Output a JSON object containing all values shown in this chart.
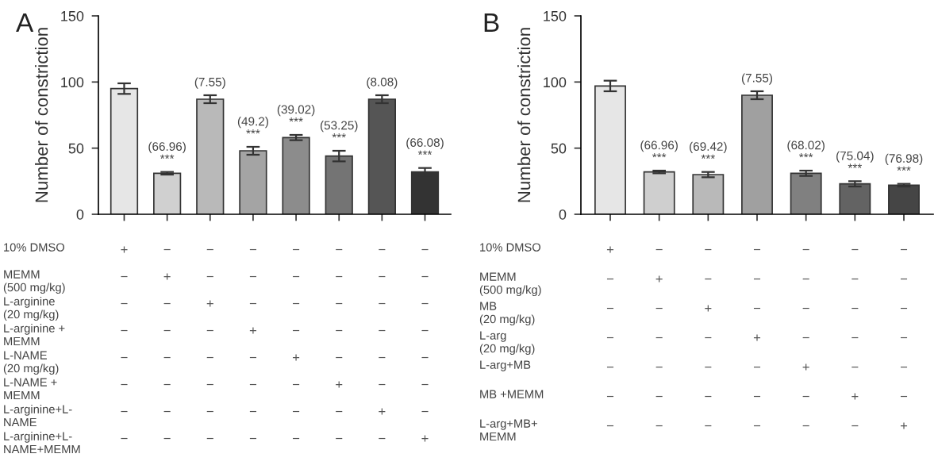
{
  "chart_data": [
    {
      "type": "bar",
      "title": "A",
      "ylabel": "Number of constriction",
      "categories": [
        null,
        null,
        null,
        null,
        null,
        null,
        null,
        null
      ],
      "values": [
        95,
        31,
        87,
        48,
        58,
        44,
        87,
        32
      ],
      "errors": [
        4,
        1,
        3,
        3,
        2,
        4,
        3,
        3
      ],
      "colors": [
        "#e6e6e6",
        "#d0d0d0",
        "#b9b9b9",
        "#a4a4a4",
        "#8c8c8c",
        "#747474",
        "#555555",
        "#333333"
      ],
      "ylim": [
        0,
        150
      ],
      "yticks": [
        0,
        50,
        100,
        150
      ],
      "grid": false,
      "tick_labels": "y",
      "annotations": [
        {
          "text": "(66.96)\n***",
          "y": 32
        },
        {
          "text": "(7.55)",
          "y": 90
        },
        {
          "text": "(49.2)\n***",
          "y": 51
        },
        {
          "text": "(39.02)\n***",
          "y": 60
        },
        {
          "text": "(53.25)\n***",
          "y": 48
        },
        {
          "text": "(8.08)",
          "y": 90
        },
        {
          "text": "(66.08)\n***",
          "y": 35
        },
        "10% DMSO",
        "+ − − − − − − −",
        "MEMM\n(500 mg/kg)",
        "− + − − − − − −",
        "L-arginine\n(20 mg/kg)",
        "− − + − − − − −",
        "L-arginine +\nMEMM",
        "− − − + − − − −",
        "L-NAME\n(20 mg/kg)",
        "− − − − + − − −",
        "L-NAME +\nMEMM",
        "− − − − − + − −",
        "L-arginine+L-\nNAME",
        "− − − − − − + −",
        "L-arginine+L-\nNAME+MEMM",
        "− − − − − − − +"
      ]
    },
    {
      "type": "bar",
      "title": "B",
      "ylabel": "Number of constriction",
      "categories": [
        null,
        null,
        null,
        null,
        null,
        null,
        null
      ],
      "values": [
        97,
        32,
        30,
        90,
        31,
        23,
        22
      ],
      "errors": [
        4,
        1,
        2,
        3,
        2,
        2,
        1
      ],
      "colors": [
        "#e6e6e6",
        "#cfcfcf",
        "#b9b9b9",
        "#a0a0a0",
        "#808080",
        "#636363",
        "#454545"
      ],
      "ylim": [
        0,
        150
      ],
      "yticks": [
        0,
        50,
        100,
        150
      ],
      "grid": false,
      "tick_labels": "y",
      "annotations": [
        {
          "text": "(66.96)\n***",
          "y": 33
        },
        {
          "text": "(69.42)\n***",
          "y": 32
        },
        {
          "text": "(7.55)",
          "y": 93
        },
        {
          "text": "(68.02)\n***",
          "y": 33
        },
        {
          "text": "(75.04)\n***",
          "y": 25
        },
        {
          "text": "(76.98)\n***",
          "y": 23
        },
        "10% DMSO",
        "+ − − − − − −",
        "MEMM\n(500 mg/kg)",
        "− + − − − − −",
        "MB\n(20 mg/kg)",
        "− − + − − − −",
        "L-arg\n(20 mg/kg)",
        "− − − + − − −",
        "L-arg+MB",
        "− − − − + − −",
        "MB +MEMM",
        "− − − − − + −",
        "L-arg+MB+\nMEMM",
        "− − − − − − +"
      ]
    }
  ]
}
